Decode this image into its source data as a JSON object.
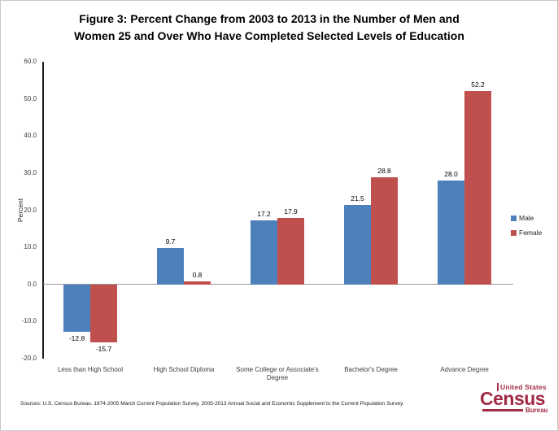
{
  "title_lines": {
    "line1": "Figure 3: Percent  Change from 2003 to 2013 in the Number of Men and",
    "line2": "Women 25 and Over Who Have Completed Selected Levels of Education"
  },
  "chart_data": {
    "type": "bar",
    "title": "Figure 3: Percent  Change from 2003 to 2013 in the Number of Men and Women 25 and Over Who Have Completed Selected Levels of Education",
    "xlabel": "",
    "ylabel": "Percent",
    "ylim": [
      -20.0,
      60.0
    ],
    "ytick_step": 10.0,
    "ytick_labels": [
      "60.0",
      "50.0",
      "40.0",
      "30.0",
      "20.0",
      "10.0",
      "0.0",
      "-10.0",
      "-20.0"
    ],
    "grid": false,
    "legend_position": "right",
    "categories": [
      "Less than High School",
      "High School Diploma",
      "Some College or Associate's Degree",
      "Bachelor's Degree",
      "Advance Degree"
    ],
    "series": [
      {
        "name": "Male",
        "color": "#4E80BC",
        "values": [
          -12.8,
          9.7,
          17.2,
          21.5,
          28.0
        ],
        "labels": [
          "-12.8",
          "9.7",
          "17.2",
          "21.5",
          "28.0"
        ]
      },
      {
        "name": "Female",
        "color": "#C0504D",
        "values": [
          -15.7,
          0.8,
          17.9,
          28.8,
          52.2
        ],
        "labels": [
          "-15.7",
          "0.8",
          "17.9",
          "28.8",
          "52.2"
        ]
      }
    ]
  },
  "footer": {
    "sources": "Sources:   U.S. Census Bureau.  1974-2005 March Current Population Survey,  2005-2013 Annual Social and Economic Supplement to the Current  Population Survey."
  },
  "logo": {
    "top": "United States",
    "name": "Census",
    "bottom": "Bureau",
    "color": "#A12A45"
  }
}
